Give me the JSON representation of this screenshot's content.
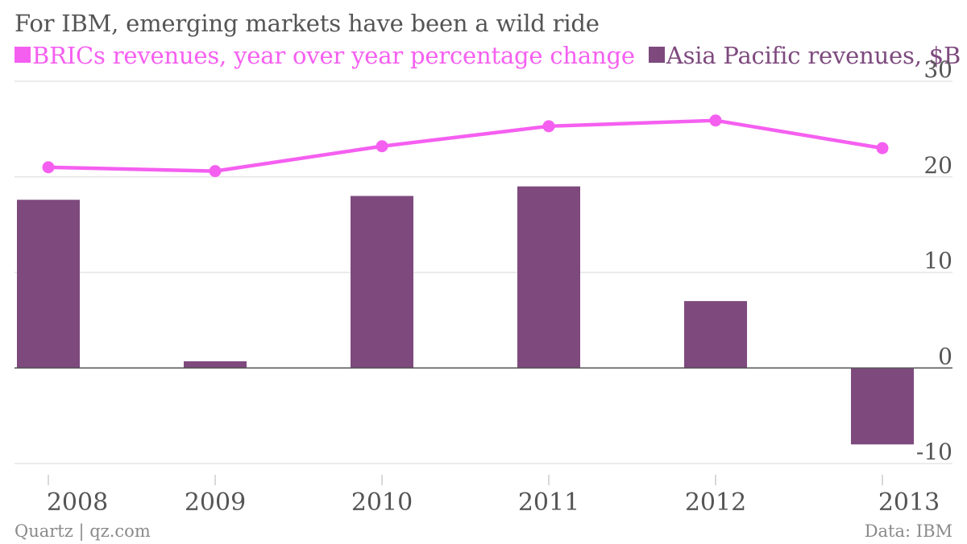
{
  "title": "For IBM, emerging markets have been a wild ride",
  "source_left": "Quartz | qz.com",
  "source_right": "Data: IBM",
  "colors": {
    "line": "#f55ff0",
    "bar": "#7e4a7e",
    "grid": "#e6e6e6",
    "zero": "#555555",
    "text": "#555555"
  },
  "chart_data": {
    "type": "bar",
    "categories": [
      "2008",
      "2009",
      "2010",
      "2011",
      "2012",
      "2013"
    ],
    "series": [
      {
        "name": "BRICs revenues, year over year percentage change",
        "type": "line",
        "values": [
          21,
          20.6,
          23.2,
          25.3,
          25.9,
          23
        ]
      },
      {
        "name": "Asia Pacific revenues, $B",
        "type": "bar",
        "values": [
          17.6,
          0.7,
          18,
          19,
          7,
          -8
        ]
      }
    ],
    "yticks": [
      30,
      20,
      10,
      0,
      -10
    ],
    "ylim": [
      -10,
      30
    ],
    "grid": true,
    "legend_position": "top-left"
  }
}
